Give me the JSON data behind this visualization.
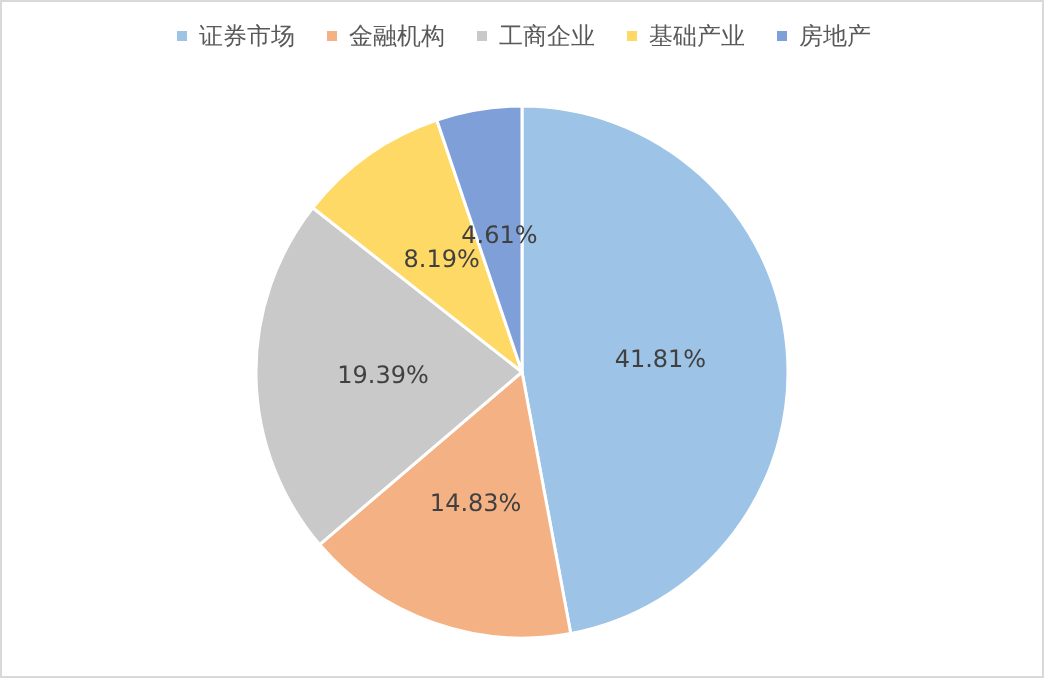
{
  "chart_data": {
    "type": "pie",
    "categories": [
      "证券市场",
      "金融机构",
      "工商企业",
      "基础产业",
      "房地产"
    ],
    "values": [
      41.81,
      14.83,
      19.39,
      8.19,
      4.61
    ],
    "value_labels": [
      "41.81%",
      "14.83%",
      "19.39%",
      "8.19%",
      "4.61%"
    ],
    "colors": [
      "#9dc3e6",
      "#f4b183",
      "#c9c9c9",
      "#ffd966",
      "#7f9fd8"
    ],
    "legend": "top"
  }
}
